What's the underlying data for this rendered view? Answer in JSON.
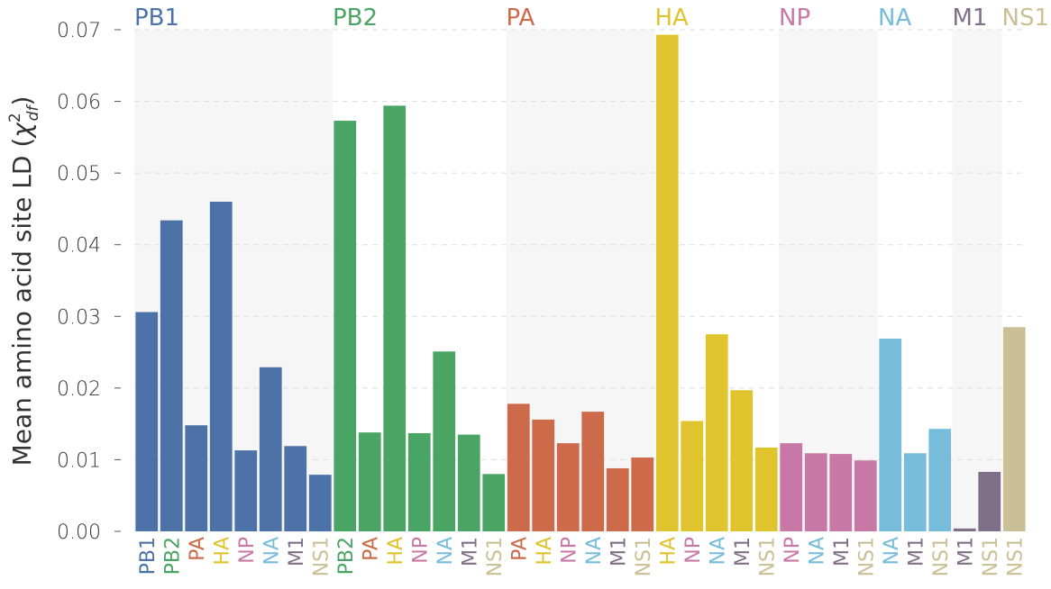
{
  "chart_data": {
    "type": "bar",
    "ylabel_text": "Mean amino acid site LD (",
    "ylabel_symbol": "χ",
    "ylabel_sup": "2",
    "ylabel_sub": "df",
    "ylabel_close": ")",
    "ylim": [
      0,
      0.07
    ],
    "yticks": [
      "0.00",
      "0.01",
      "0.02",
      "0.03",
      "0.04",
      "0.05",
      "0.06",
      "0.07"
    ],
    "segment_colors": {
      "PB1": "#4c72a8",
      "PB2": "#4aa464",
      "PA": "#cd6a4a",
      "HA": "#dfc42e",
      "NP": "#c878a6",
      "NA": "#77bcdb",
      "M1": "#806f89",
      "NS1": "#cbc095"
    },
    "groups": [
      {
        "label": "PB1",
        "bars": [
          {
            "x": "PB1",
            "value": 0.0306
          },
          {
            "x": "PB2",
            "value": 0.0434
          },
          {
            "x": "PA",
            "value": 0.0148
          },
          {
            "x": "HA",
            "value": 0.046
          },
          {
            "x": "NP",
            "value": 0.0113
          },
          {
            "x": "NA",
            "value": 0.0229
          },
          {
            "x": "M1",
            "value": 0.0119
          },
          {
            "x": "NS1",
            "value": 0.0079
          }
        ]
      },
      {
        "label": "PB2",
        "bars": [
          {
            "x": "PB2",
            "value": 0.0573
          },
          {
            "x": "PA",
            "value": 0.0138
          },
          {
            "x": "HA",
            "value": 0.0594
          },
          {
            "x": "NP",
            "value": 0.0137
          },
          {
            "x": "NA",
            "value": 0.0251
          },
          {
            "x": "M1",
            "value": 0.0135
          },
          {
            "x": "NS1",
            "value": 0.008
          }
        ]
      },
      {
        "label": "PA",
        "bars": [
          {
            "x": "PA",
            "value": 0.0178
          },
          {
            "x": "HA",
            "value": 0.0156
          },
          {
            "x": "NP",
            "value": 0.0123
          },
          {
            "x": "NA",
            "value": 0.0167
          },
          {
            "x": "M1",
            "value": 0.0088
          },
          {
            "x": "NS1",
            "value": 0.0103
          }
        ]
      },
      {
        "label": "HA",
        "bars": [
          {
            "x": "HA",
            "value": 0.0693
          },
          {
            "x": "NP",
            "value": 0.0154
          },
          {
            "x": "NA",
            "value": 0.0275
          },
          {
            "x": "M1",
            "value": 0.0197
          },
          {
            "x": "NS1",
            "value": 0.0117
          }
        ]
      },
      {
        "label": "NP",
        "bars": [
          {
            "x": "NP",
            "value": 0.0123
          },
          {
            "x": "NA",
            "value": 0.0109
          },
          {
            "x": "M1",
            "value": 0.0108
          },
          {
            "x": "NS1",
            "value": 0.0099
          }
        ]
      },
      {
        "label": "NA",
        "bars": [
          {
            "x": "NA",
            "value": 0.0269
          },
          {
            "x": "M1",
            "value": 0.0109
          },
          {
            "x": "NS1",
            "value": 0.0143
          }
        ]
      },
      {
        "label": "M1",
        "bars": [
          {
            "x": "M1",
            "value": 0.0004
          },
          {
            "x": "NS1",
            "value": 0.0083
          }
        ]
      },
      {
        "label": "NS1",
        "bars": [
          {
            "x": "NS1",
            "value": 0.0285
          }
        ]
      }
    ],
    "shaded_groups": [
      "PB1",
      "PA",
      "NP",
      "M1"
    ],
    "grid": true,
    "legend": "none"
  }
}
